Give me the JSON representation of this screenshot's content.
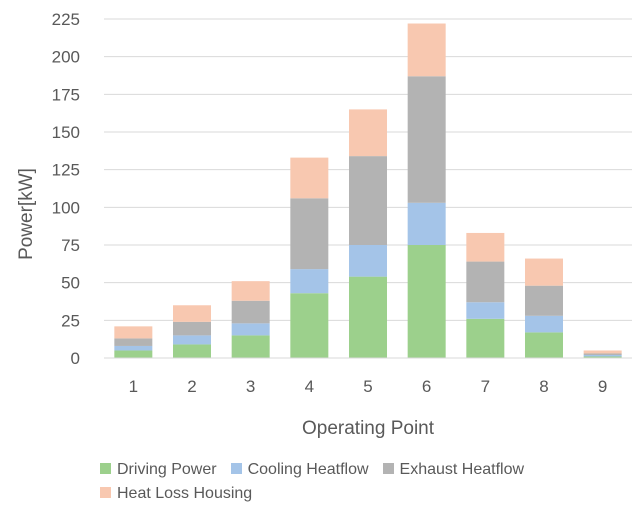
{
  "chart_data": {
    "type": "bar",
    "stacked": true,
    "categories": [
      "1",
      "2",
      "3",
      "4",
      "5",
      "6",
      "7",
      "8",
      "9"
    ],
    "series": [
      {
        "name": "Driving Power",
        "color": "#9cd08c",
        "values": [
          5,
          9,
          15,
          43,
          54,
          75,
          26,
          17,
          1
        ]
      },
      {
        "name": "Cooling Heatflow",
        "color": "#a4c4e8",
        "values": [
          3,
          6,
          8,
          16,
          21,
          28,
          11,
          11,
          1
        ]
      },
      {
        "name": "Exhaust Heatflow",
        "color": "#b3b3b3",
        "values": [
          5,
          9,
          15,
          47,
          59,
          84,
          27,
          20,
          1
        ]
      },
      {
        "name": "Heat Loss Housing",
        "color": "#f8c8b0",
        "values": [
          8,
          11,
          13,
          27,
          31,
          35,
          19,
          18,
          2
        ]
      }
    ],
    "xlabel": "Operating Point",
    "ylabel": "Power[kW]",
    "ylim": [
      0,
      225
    ],
    "yticks": [
      0,
      25,
      50,
      75,
      100,
      125,
      150,
      175,
      200,
      225
    ],
    "grid": true,
    "legend_position": "bottom"
  }
}
